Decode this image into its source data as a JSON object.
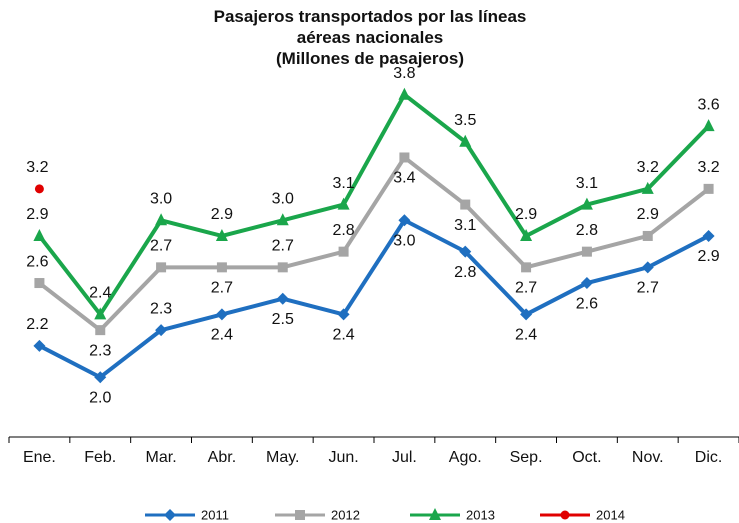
{
  "chart_data": {
    "type": "line",
    "title": "Pasajeros transportados por las líneas aéreas nacionales",
    "subtitle": "(Millones de pasajeros)",
    "categories": [
      "Ene.",
      "Feb.",
      "Mar.",
      "Abr.",
      "May.",
      "Jun.",
      "Jul.",
      "Ago.",
      "Sep.",
      "Oct.",
      "Nov.",
      "Dic."
    ],
    "ylim": [
      1.6,
      3.9
    ],
    "legend": "bottom",
    "series": [
      {
        "name": "2011",
        "color": "#1f6fc0",
        "marker": "diamond",
        "values": [
          2.2,
          2.0,
          2.3,
          2.4,
          2.5,
          2.4,
          3.0,
          2.8,
          2.4,
          2.6,
          2.7,
          2.9
        ],
        "value_labels": [
          "2.2",
          "2.0",
          "2.3",
          "2.4",
          "2.5",
          "2.4",
          "3.0",
          "2.8",
          "2.4",
          "2.6",
          "2.7",
          "2.9"
        ]
      },
      {
        "name": "2012",
        "color": "#a5a5a5",
        "marker": "square",
        "values": [
          2.6,
          2.3,
          2.7,
          2.7,
          2.7,
          2.8,
          3.4,
          3.1,
          2.7,
          2.8,
          2.9,
          3.2
        ],
        "value_labels": [
          "2.6",
          "2.3",
          "2.7",
          "2.7",
          "2.7",
          "2.8",
          "3.4",
          "3.1",
          "2.7",
          "2.8",
          "2.9",
          "3.2"
        ]
      },
      {
        "name": "2013",
        "color": "#1aa64b",
        "marker": "triangle",
        "values": [
          2.9,
          2.4,
          3.0,
          2.9,
          3.0,
          3.1,
          3.8,
          3.5,
          2.9,
          3.1,
          3.2,
          3.6
        ],
        "value_labels": [
          "2.9",
          "2.4",
          "3.0",
          "2.9",
          "3.0",
          "3.1",
          "3.8",
          "3.5",
          "2.9",
          "3.1",
          "3.2",
          "3.6"
        ]
      },
      {
        "name": "2014",
        "color": "#e00000",
        "marker": "circle",
        "values": [
          3.2,
          null,
          null,
          null,
          null,
          null,
          null,
          null,
          null,
          null,
          null,
          null
        ],
        "value_labels": [
          "3.2",
          null,
          null,
          null,
          null,
          null,
          null,
          null,
          null,
          null,
          null,
          null
        ]
      }
    ]
  }
}
